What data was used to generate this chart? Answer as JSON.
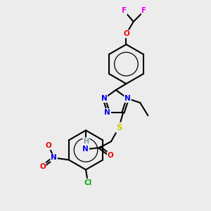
{
  "background_color": "#ececec",
  "atom_colors": {
    "C": "#000000",
    "H": "#7a9aa0",
    "N": "#0000ee",
    "O": "#ee0000",
    "S": "#cccc00",
    "F": "#ee00ee",
    "Cl": "#00aa00"
  },
  "bond_color": "#000000",
  "bond_width": 1.5,
  "figsize": [
    3.0,
    3.0
  ],
  "dpi": 100
}
